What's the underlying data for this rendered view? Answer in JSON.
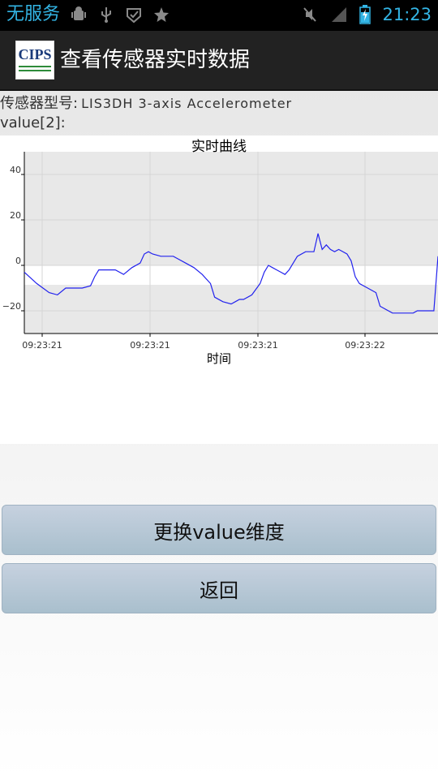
{
  "status_bar": {
    "carrier": "无服务",
    "time": "21:23",
    "icons": [
      "android-debug-icon",
      "usb-icon",
      "check-shield-icon",
      "star-icon",
      "mute-icon",
      "signal-icon",
      "battery-charging-icon"
    ]
  },
  "action_bar": {
    "logo_text": "CIPS",
    "title": "查看传感器实时数据"
  },
  "sensor": {
    "label": "传感器型号:",
    "model": "LIS3DH 3-axis Accelerometer",
    "value_label": "value[2]:"
  },
  "chart_data": {
    "type": "line",
    "title": "实时曲线",
    "xlabel": "时间",
    "ylabel": "",
    "ylim": [
      -30,
      50
    ],
    "yticks": [
      40,
      20,
      0,
      -20
    ],
    "xticks": [
      "09:23:21",
      "09:23:21",
      "09:23:21",
      "09:23:22"
    ],
    "grid": true,
    "series": [
      {
        "color": "#2222ee",
        "x": [
          0,
          3,
          6,
          8,
          10,
          11,
          12,
          14,
          16,
          17,
          18,
          20,
          22,
          24,
          26,
          28,
          29,
          30,
          31,
          33,
          34,
          35,
          36,
          37,
          39,
          41,
          43,
          45,
          46,
          48,
          50,
          51,
          52,
          53,
          55,
          57,
          58,
          59,
          60,
          61,
          62,
          63,
          64,
          65,
          66,
          68,
          70,
          71,
          72,
          73,
          74,
          75,
          76,
          78,
          79,
          80,
          81,
          83,
          85,
          86,
          89,
          92,
          94,
          95,
          97,
          99,
          100
        ],
        "values": [
          -3,
          -8,
          -12,
          -13,
          -10,
          -10,
          -10,
          -10,
          -9,
          -5,
          -2,
          -2,
          -2,
          -4,
          -1,
          1,
          5,
          6,
          5,
          4,
          4,
          4,
          4,
          3,
          1,
          -1,
          -4,
          -8,
          -14,
          -16,
          -17,
          -16,
          -15,
          -15,
          -13,
          -8,
          -3,
          0,
          -1,
          -2,
          -3,
          -4,
          -2,
          1,
          4,
          6,
          6,
          14,
          7,
          9,
          7,
          6,
          7,
          5,
          2,
          -5,
          -8,
          -10,
          -12,
          -18,
          -21,
          -21,
          -21,
          -20,
          -20,
          -20,
          4
        ]
      }
    ]
  },
  "buttons": {
    "change_label": "更换value维度",
    "back_label": "返回"
  }
}
